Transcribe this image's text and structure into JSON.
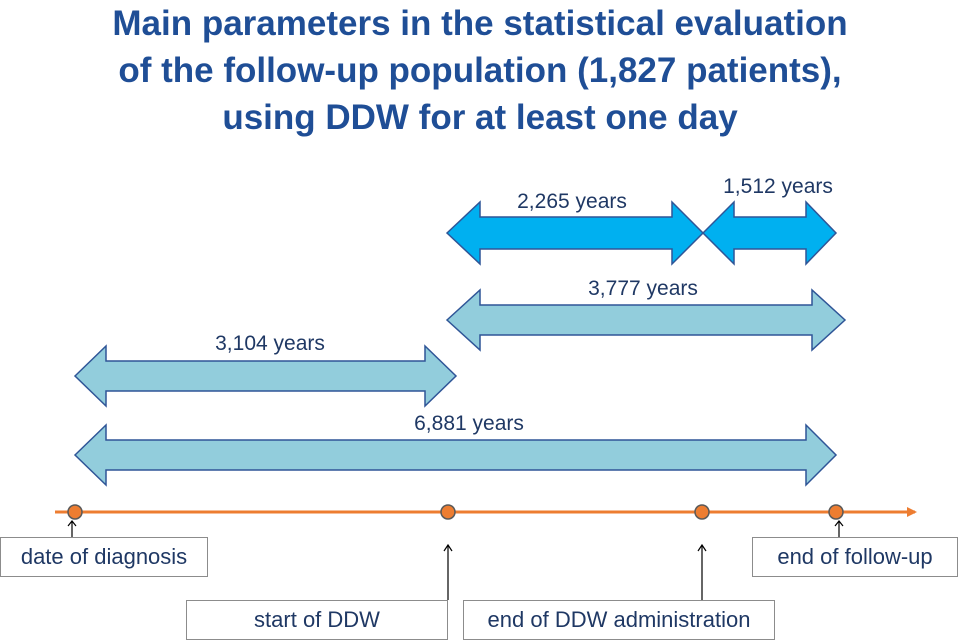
{
  "title": {
    "line1": "Main parameters in the statistical evaluation",
    "line2": "of the follow-up population (1,827 patients),",
    "line3": "using DDW for at least one day"
  },
  "spans": {
    "ddw_administration": "2,265 years",
    "post_ddw": "1,512 years",
    "ddw_total": "3,777 years",
    "pre_ddw": "3,104 years",
    "total": "6,881 years"
  },
  "timeline": {
    "date_of_diagnosis": "date of diagnosis",
    "start_of_ddw": "start of DDW",
    "end_of_ddw_administration": "end of DDW administration",
    "end_of_follow_up": "end of follow-up"
  },
  "colors": {
    "title": "#1f4e96",
    "bright_arrow": "#00b0f0",
    "light_arrow": "#92cddc",
    "arrow_outline": "#2f5597",
    "timeline": "#ed7d31"
  }
}
